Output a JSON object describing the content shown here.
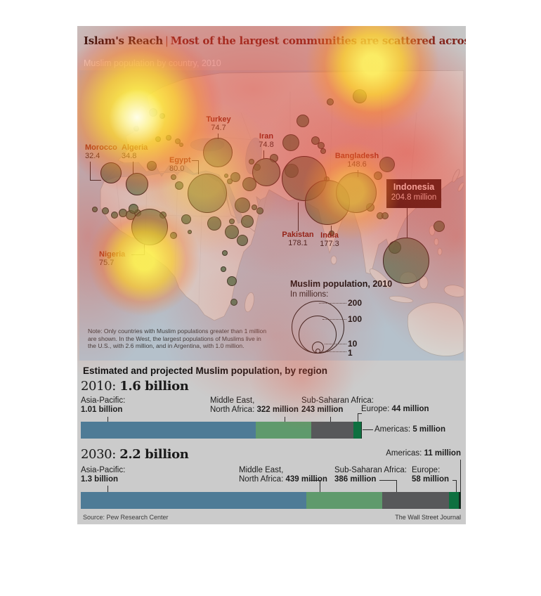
{
  "header": {
    "title_lead": "Islam's Reach",
    "title_sep": "|",
    "title_rest": "Most of the largest communities are scattered across Asia",
    "subtitle": "Muslim population by country, 2010"
  },
  "map": {
    "legend": {
      "title": "Muslim population, 2010",
      "subtitle": "In millions:",
      "values": [
        "200",
        "100",
        "10",
        "1"
      ]
    },
    "note": {
      "l1": "Note: Only countries with Muslim populations greater than 1 million",
      "l2": "are shown. In the West, the largest populations of Muslims live in",
      "l3": "the U.S., with 2.6 million, and in Argentina, with 1.0 million."
    },
    "callout": {
      "name": "Indonesia",
      "value": "204.8 million"
    }
  },
  "chart_data": [
    {
      "type": "scatter",
      "subtype": "bubble-map",
      "title": "Muslim population by country, 2010",
      "units": "millions",
      "points": [
        {
          "country": "Indonesia",
          "value": 204.8,
          "label": "204.8 million"
        },
        {
          "country": "Pakistan",
          "value": 178.1,
          "label": "178.1"
        },
        {
          "country": "India",
          "value": 177.3,
          "label": "177.3"
        },
        {
          "country": "Bangladesh",
          "value": 148.6,
          "label": "148.6"
        },
        {
          "country": "Egypt",
          "value": 80.0,
          "label": "80.0"
        },
        {
          "country": "Nigeria",
          "value": 75.7,
          "label": "75.7"
        },
        {
          "country": "Iran",
          "value": 74.8,
          "label": "74.8"
        },
        {
          "country": "Turkey",
          "value": 74.7,
          "label": "74.7"
        },
        {
          "country": "Algeria",
          "value": 34.8,
          "label": "34.8"
        },
        {
          "country": "Morocco",
          "value": 32.4,
          "label": "32.4"
        }
      ],
      "legend_values": [
        200,
        100,
        10,
        1
      ]
    },
    {
      "type": "bar",
      "subtype": "stacked-horizontal",
      "title": "Estimated and projected Muslim population, by region",
      "unit": "millions",
      "bars": [
        {
          "year": "2010",
          "total_label": "1.6 billion",
          "segments": [
            {
              "region": "Asia-Pacific",
              "value": 1010,
              "value_label": "1.01 billion",
              "color": "#4e7b96"
            },
            {
              "region": "Middle East, North Africa",
              "value": 322,
              "value_label": "322 million",
              "color": "#5f9a6c"
            },
            {
              "region": "Sub-Saharan Africa",
              "value": 243,
              "value_label": "243 million",
              "color": "#57585a"
            },
            {
              "region": "Europe",
              "value": 44,
              "value_label": "44 million",
              "color": "#0e7040"
            },
            {
              "region": "Americas",
              "value": 5,
              "value_label": "5 million",
              "color": "#152a1f"
            }
          ]
        },
        {
          "year": "2030",
          "total_label": "2.2 billion",
          "segments": [
            {
              "region": "Asia-Pacific",
              "value": 1300,
              "value_label": "1.3 billion",
              "color": "#4e7b96"
            },
            {
              "region": "Middle East, North Africa",
              "value": 439,
              "value_label": "439 million",
              "color": "#5f9a6c"
            },
            {
              "region": "Sub-Saharan Africa",
              "value": 386,
              "value_label": "386 million",
              "color": "#57585a"
            },
            {
              "region": "Europe",
              "value": 58,
              "value_label": "58 million",
              "color": "#0e7040"
            },
            {
              "region": "Americas",
              "value": 11,
              "value_label": "11 million",
              "color": "#152a1f"
            }
          ]
        }
      ]
    }
  ],
  "regions": {
    "heading": "Estimated and projected Muslim population, by region",
    "b2010": {
      "year": "2010:",
      "total": "1.6 billion",
      "ap1": "Asia-Pacific:",
      "ap2": "1.01 billion",
      "mena1": "Middle East,",
      "mena2a": "North Africa: ",
      "mena2b": "322 million",
      "ssa1": "Sub-Saharan Africa:",
      "ssa2": "243 million",
      "eu_a": "Europe: ",
      "eu_b": "44 million",
      "am_a": "Americas: ",
      "am_b": "5 million"
    },
    "b2030": {
      "year": "2030:",
      "total": "2.2 billion",
      "ap1": "Asia-Pacific:",
      "ap2": "1.3 billion",
      "mena1": "Middle East,",
      "mena2a": "North Africa: ",
      "mena2b": "439 million",
      "ssa1": "Sub-Saharan Africa:",
      "ssa2": "386 million",
      "eu1": "Europe:",
      "eu2": "58 million",
      "am_a": "Americas: ",
      "am_b": "11 million"
    }
  },
  "footer": {
    "source": "Source: Pew Research Center",
    "credit": "The Wall Street Journal"
  }
}
